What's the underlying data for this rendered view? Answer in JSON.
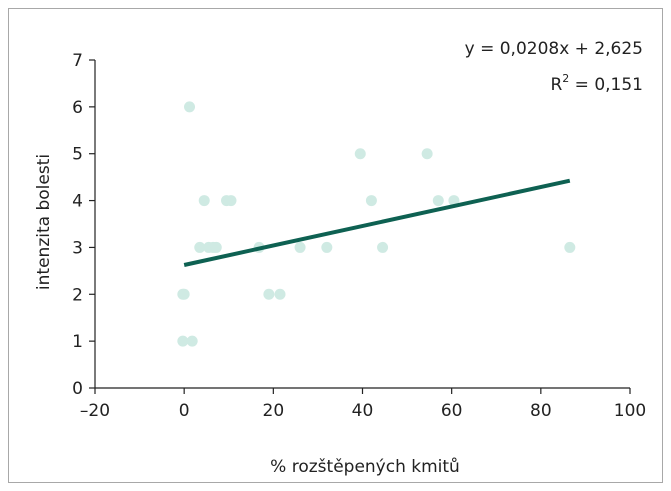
{
  "chart_data": {
    "type": "scatter",
    "title": "",
    "xlabel": "% rozštěpených kmitů",
    "ylabel": "intenzita bolesti",
    "xlim": [
      -20,
      100
    ],
    "ylim": [
      0,
      7
    ],
    "x_ticks": [
      -20,
      0,
      20,
      40,
      60,
      80,
      100
    ],
    "y_ticks": [
      0,
      1,
      2,
      3,
      4,
      5,
      6,
      7
    ],
    "x_tick_labels": [
      "–20",
      "0",
      "20",
      "40",
      "60",
      "80",
      "100"
    ],
    "y_tick_labels": [
      "0",
      "1",
      "2",
      "3",
      "4",
      "5",
      "6",
      "7"
    ],
    "grid": false,
    "points": [
      {
        "x": 1.2,
        "y": 6
      },
      {
        "x": 39.5,
        "y": 5
      },
      {
        "x": 54.5,
        "y": 5
      },
      {
        "x": 4.5,
        "y": 4
      },
      {
        "x": 9.5,
        "y": 4
      },
      {
        "x": 10.5,
        "y": 4
      },
      {
        "x": 42,
        "y": 4
      },
      {
        "x": 57,
        "y": 4
      },
      {
        "x": 60.5,
        "y": 4
      },
      {
        "x": 3.5,
        "y": 3
      },
      {
        "x": 5.5,
        "y": 3
      },
      {
        "x": 6.5,
        "y": 3
      },
      {
        "x": 7.2,
        "y": 3
      },
      {
        "x": 16.8,
        "y": 3
      },
      {
        "x": 26,
        "y": 3
      },
      {
        "x": 32,
        "y": 3
      },
      {
        "x": 44.5,
        "y": 3
      },
      {
        "x": 86.5,
        "y": 3
      },
      {
        "x": -0.3,
        "y": 2
      },
      {
        "x": 0,
        "y": 2
      },
      {
        "x": 19,
        "y": 2
      },
      {
        "x": 21.5,
        "y": 2
      },
      {
        "x": -0.3,
        "y": 1
      },
      {
        "x": 1.8,
        "y": 1
      }
    ],
    "trendline": {
      "type": "linear",
      "slope": 0.0208,
      "intercept": 2.625,
      "x_range": [
        0,
        86.5
      ]
    },
    "annotations": {
      "equation": "y = 0,0208x + 2,625",
      "r2_prefix": "R",
      "r2_sup": "2",
      "r2_suffix": " = 0,151"
    },
    "colors": {
      "points": "#cfeae3",
      "trendline": "#0e6152",
      "axis": "#222222",
      "frame": "#a8a8a8"
    }
  }
}
